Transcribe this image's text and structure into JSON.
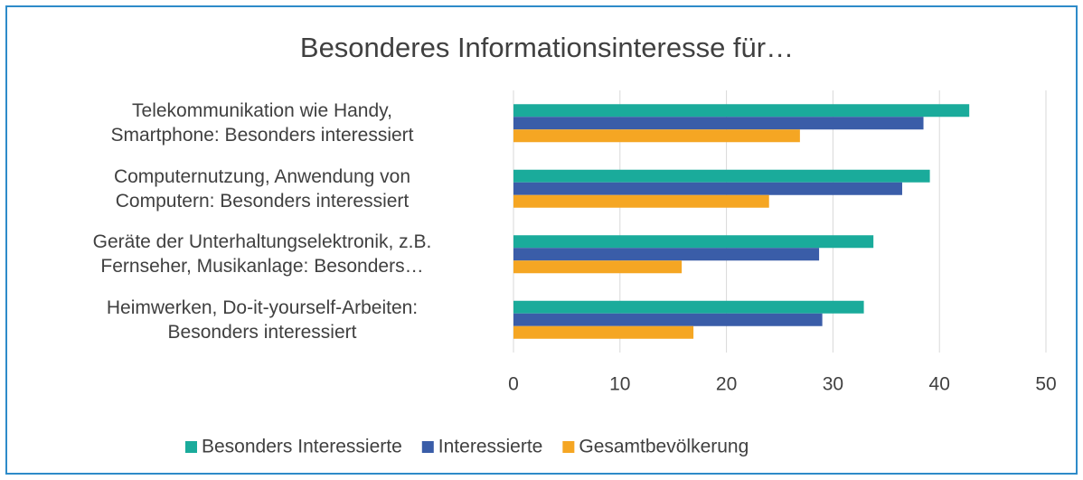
{
  "chart_data": {
    "type": "hbar",
    "title": "Besonderes Informationsinteresse für…",
    "categories": [
      "Telekommunikation wie Handy,\nSmartphone: Besonders interessiert",
      "Computernutzung, Anwendung von\nComputern: Besonders interessiert",
      "Geräte der Unterhaltungselektronik, z.B.\nFernseher, Musikanlage: Besonders…",
      "Heimwerken, Do-it-yourself-Arbeiten:\nBesonders interessiert"
    ],
    "series": [
      {
        "name": "Besonders Interessierte",
        "color": "#1aab9b",
        "values": [
          42.8,
          39.1,
          33.8,
          32.9
        ]
      },
      {
        "name": "Interessierte",
        "color": "#3a5da8",
        "values": [
          38.5,
          36.5,
          28.7,
          29.0
        ]
      },
      {
        "name": "Gesamtbevölkerung",
        "color": "#f5a623",
        "values": [
          26.9,
          24.0,
          15.8,
          16.9
        ]
      }
    ],
    "xlim": [
      0,
      50
    ],
    "xticks": [
      0,
      10,
      20,
      30,
      40,
      50
    ],
    "grid": true,
    "legend": "bottom"
  }
}
